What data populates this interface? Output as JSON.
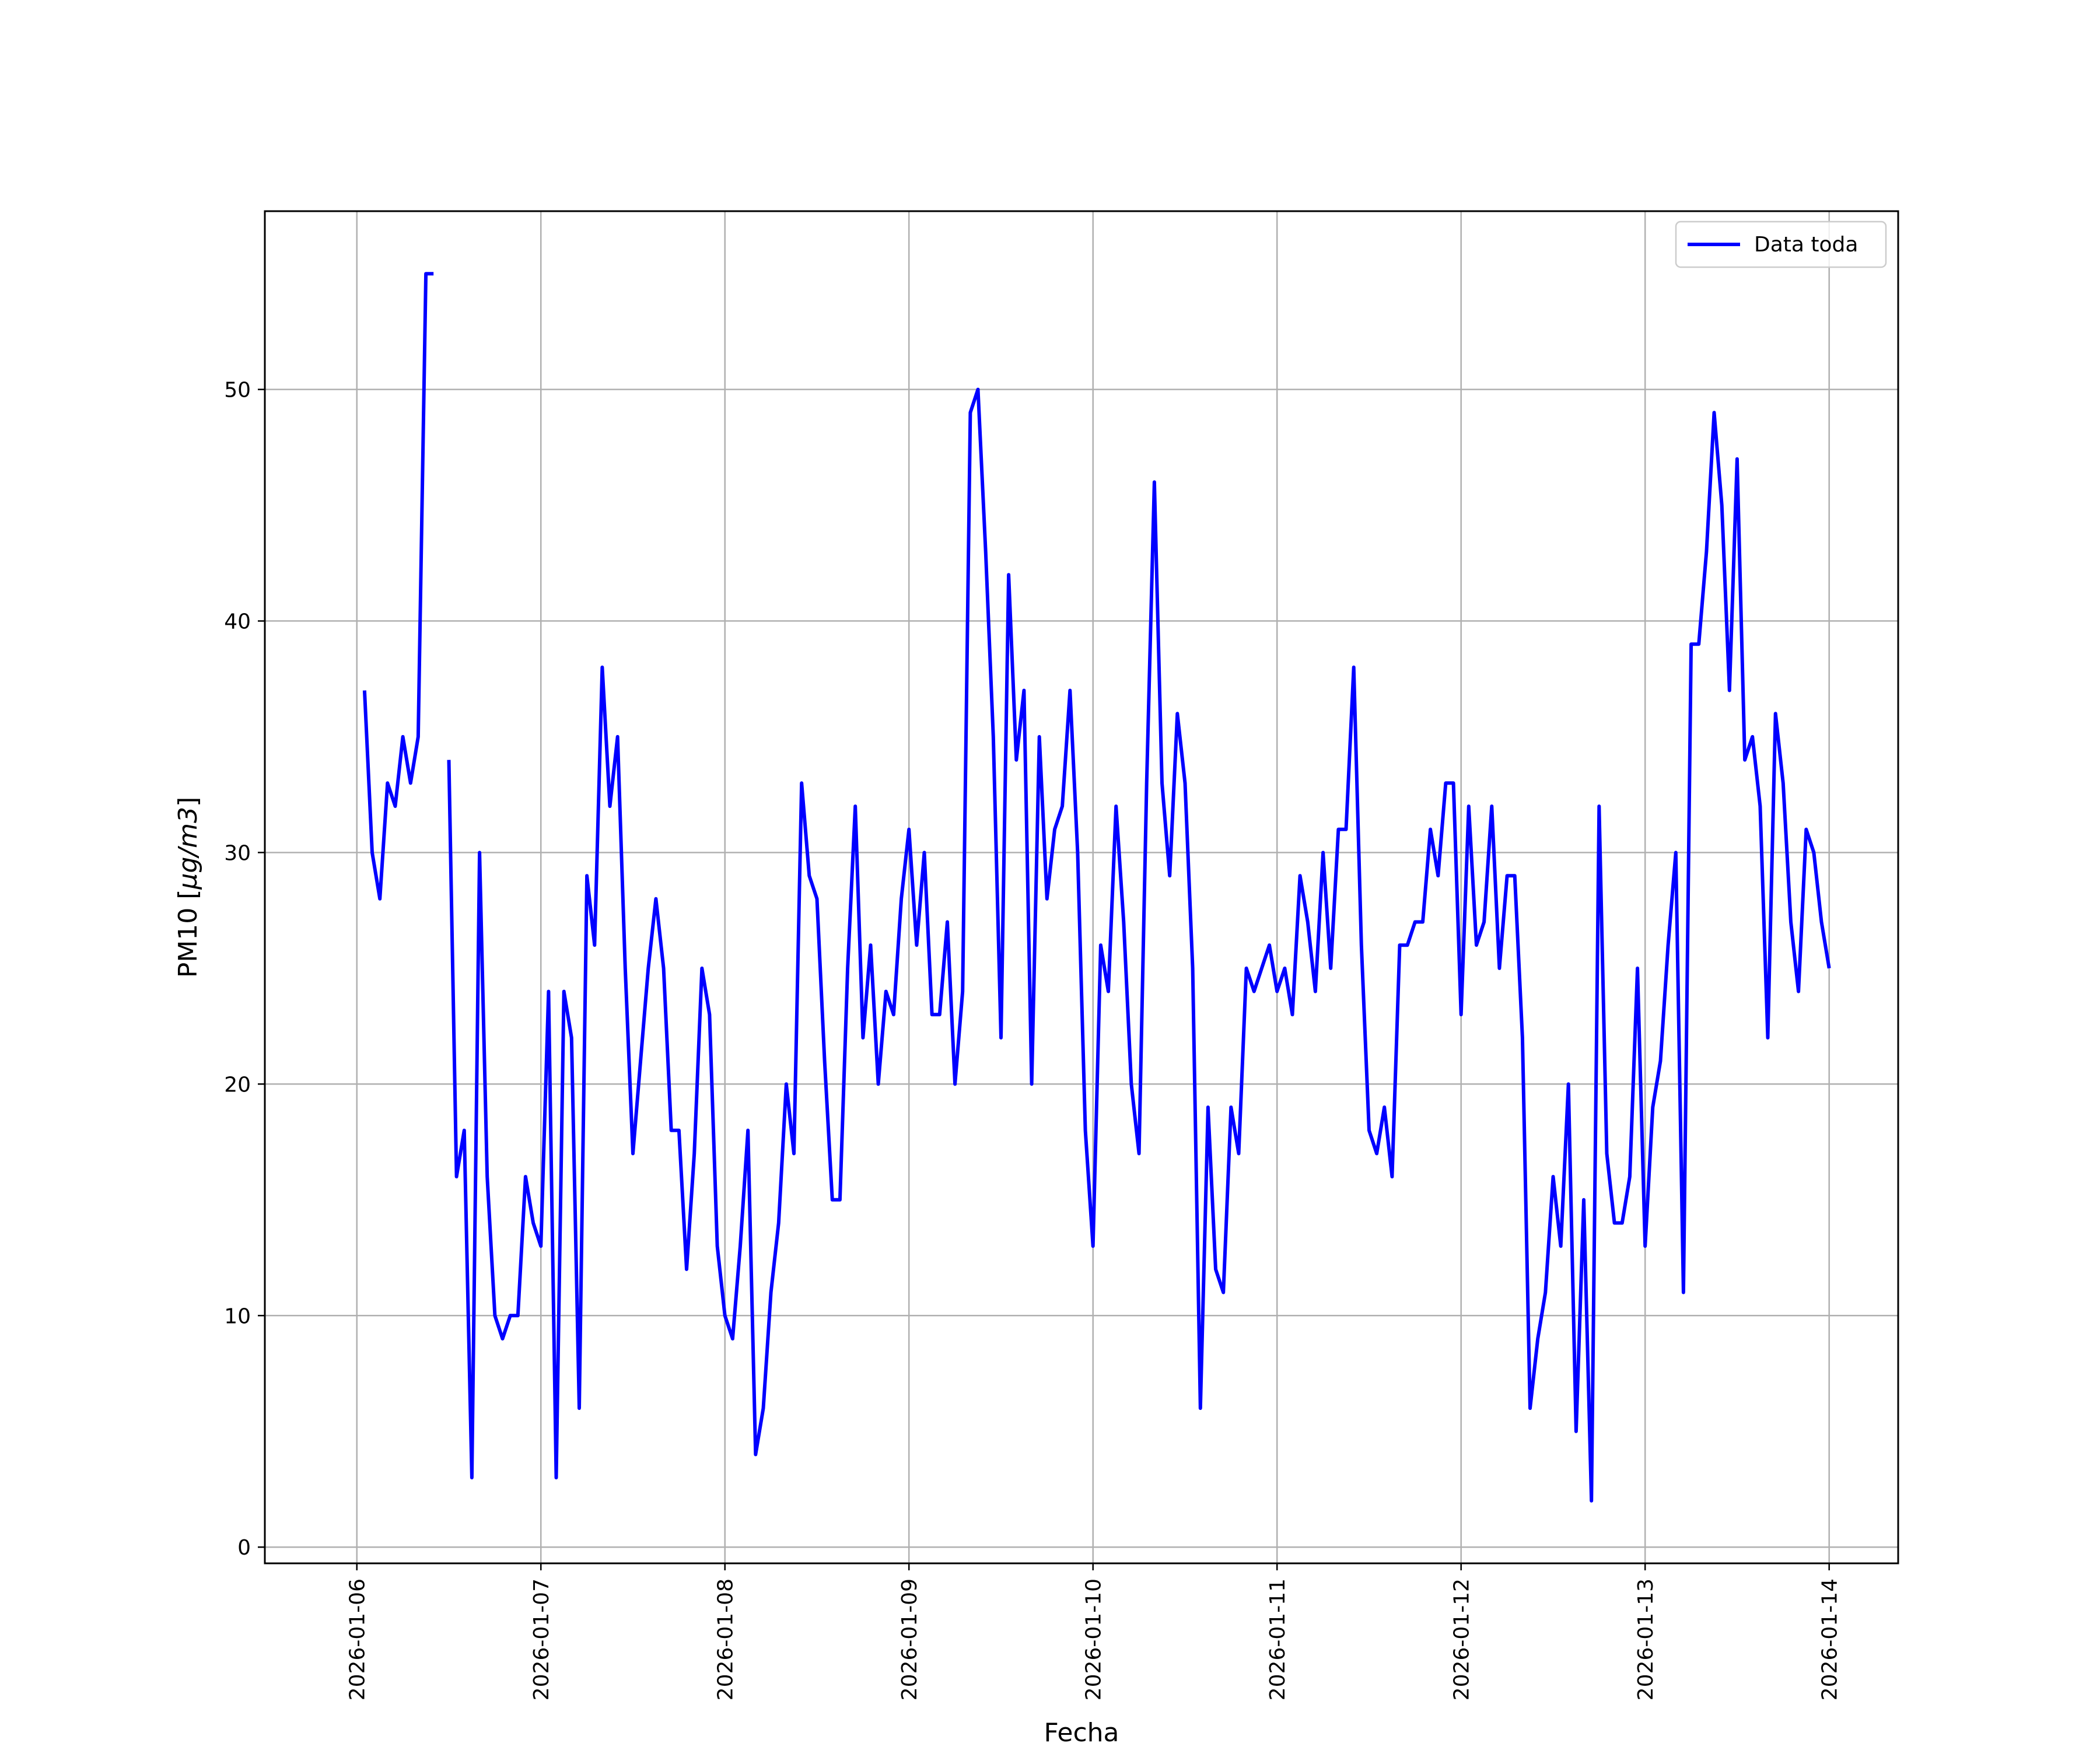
{
  "chart_data": {
    "type": "line",
    "title": "",
    "xlabel": "Fecha",
    "ylabel": "PM10 [μg/m3]",
    "ylabel_parts": {
      "prefix": "PM10 [",
      "unit": "μg/m3",
      "suffix": "]"
    },
    "xlim": [
      "2026-01-05T12:00",
      "2026-01-14T09:00"
    ],
    "ylim": [
      -0.7,
      57.7
    ],
    "x_ticks": [
      "2026-01-06",
      "2026-01-07",
      "2026-01-08",
      "2026-01-09",
      "2026-01-10",
      "2026-01-11",
      "2026-01-12",
      "2026-01-13",
      "2026-01-14"
    ],
    "y_ticks": [
      0,
      10,
      20,
      30,
      40,
      50
    ],
    "grid": true,
    "legend_position": "top-right",
    "colors": {
      "series": "#0000ff",
      "grid": "#b0b0b0",
      "axes": "#000000"
    },
    "series": [
      {
        "name": "Data toda",
        "color": "#0000ff",
        "time_step_hours": 1,
        "x": [
          "2026-01-06T01:00",
          "2026-01-06T02:00",
          "2026-01-06T03:00",
          "2026-01-06T04:00",
          "2026-01-06T05:00",
          "2026-01-06T06:00",
          "2026-01-06T07:00",
          "2026-01-06T08:00",
          "2026-01-06T09:00",
          "2026-01-06T10:00",
          "2026-01-06T11:00",
          "2026-01-06T12:00",
          "2026-01-06T13:00",
          "2026-01-06T14:00",
          "2026-01-06T15:00",
          "2026-01-06T16:00",
          "2026-01-06T17:00",
          "2026-01-06T18:00",
          "2026-01-06T19:00",
          "2026-01-06T20:00",
          "2026-01-06T21:00",
          "2026-01-06T22:00",
          "2026-01-06T23:00",
          "2026-01-07T00:00",
          "2026-01-07T01:00",
          "2026-01-07T02:00",
          "2026-01-07T03:00",
          "2026-01-07T04:00",
          "2026-01-07T05:00",
          "2026-01-07T06:00",
          "2026-01-07T07:00",
          "2026-01-07T08:00",
          "2026-01-07T09:00",
          "2026-01-07T10:00",
          "2026-01-07T11:00",
          "2026-01-07T12:00",
          "2026-01-07T13:00",
          "2026-01-07T14:00",
          "2026-01-07T15:00",
          "2026-01-07T16:00",
          "2026-01-07T17:00",
          "2026-01-07T18:00",
          "2026-01-07T19:00",
          "2026-01-07T20:00",
          "2026-01-07T21:00",
          "2026-01-07T22:00",
          "2026-01-07T23:00",
          "2026-01-08T00:00",
          "2026-01-08T01:00",
          "2026-01-08T02:00",
          "2026-01-08T03:00",
          "2026-01-08T04:00",
          "2026-01-08T05:00",
          "2026-01-08T06:00",
          "2026-01-08T07:00",
          "2026-01-08T08:00",
          "2026-01-08T09:00",
          "2026-01-08T10:00",
          "2026-01-08T11:00",
          "2026-01-08T12:00",
          "2026-01-08T13:00",
          "2026-01-08T14:00",
          "2026-01-08T15:00",
          "2026-01-08T16:00",
          "2026-01-08T17:00",
          "2026-01-08T18:00",
          "2026-01-08T19:00",
          "2026-01-08T20:00",
          "2026-01-08T21:00",
          "2026-01-08T22:00",
          "2026-01-08T23:00",
          "2026-01-09T00:00",
          "2026-01-09T01:00",
          "2026-01-09T02:00",
          "2026-01-09T03:00",
          "2026-01-09T04:00",
          "2026-01-09T05:00",
          "2026-01-09T06:00",
          "2026-01-09T07:00",
          "2026-01-09T08:00",
          "2026-01-09T09:00",
          "2026-01-09T10:00",
          "2026-01-09T11:00",
          "2026-01-09T12:00",
          "2026-01-09T13:00",
          "2026-01-09T14:00",
          "2026-01-09T15:00",
          "2026-01-09T16:00",
          "2026-01-09T17:00",
          "2026-01-09T18:00",
          "2026-01-09T19:00",
          "2026-01-09T20:00",
          "2026-01-09T21:00",
          "2026-01-09T22:00",
          "2026-01-09T23:00",
          "2026-01-10T00:00",
          "2026-01-10T01:00",
          "2026-01-10T02:00",
          "2026-01-10T03:00",
          "2026-01-10T04:00",
          "2026-01-10T05:00",
          "2026-01-10T06:00",
          "2026-01-10T07:00",
          "2026-01-10T08:00",
          "2026-01-10T09:00",
          "2026-01-10T10:00",
          "2026-01-10T11:00",
          "2026-01-10T12:00",
          "2026-01-10T13:00",
          "2026-01-10T14:00",
          "2026-01-10T15:00",
          "2026-01-10T16:00",
          "2026-01-10T17:00",
          "2026-01-10T18:00",
          "2026-01-10T19:00",
          "2026-01-10T20:00",
          "2026-01-10T21:00",
          "2026-01-10T22:00",
          "2026-01-10T23:00",
          "2026-01-11T00:00",
          "2026-01-11T01:00",
          "2026-01-11T02:00",
          "2026-01-11T03:00",
          "2026-01-11T04:00",
          "2026-01-11T05:00",
          "2026-01-11T06:00",
          "2026-01-11T07:00",
          "2026-01-11T08:00",
          "2026-01-11T09:00",
          "2026-01-11T10:00",
          "2026-01-11T11:00",
          "2026-01-11T12:00",
          "2026-01-11T13:00",
          "2026-01-11T14:00",
          "2026-01-11T15:00",
          "2026-01-11T16:00",
          "2026-01-11T17:00",
          "2026-01-11T18:00",
          "2026-01-11T19:00",
          "2026-01-11T20:00",
          "2026-01-11T21:00",
          "2026-01-11T22:00",
          "2026-01-11T23:00",
          "2026-01-12T00:00",
          "2026-01-12T01:00",
          "2026-01-12T02:00",
          "2026-01-12T03:00",
          "2026-01-12T04:00",
          "2026-01-12T05:00",
          "2026-01-12T06:00",
          "2026-01-12T07:00",
          "2026-01-12T08:00",
          "2026-01-12T09:00",
          "2026-01-12T10:00",
          "2026-01-12T11:00",
          "2026-01-12T12:00",
          "2026-01-12T13:00",
          "2026-01-12T14:00",
          "2026-01-12T15:00",
          "2026-01-12T16:00",
          "2026-01-12T17:00",
          "2026-01-12T18:00",
          "2026-01-12T19:00",
          "2026-01-12T20:00",
          "2026-01-12T21:00",
          "2026-01-12T22:00",
          "2026-01-12T23:00",
          "2026-01-13T00:00",
          "2026-01-13T01:00",
          "2026-01-13T02:00",
          "2026-01-13T03:00",
          "2026-01-13T04:00",
          "2026-01-13T05:00",
          "2026-01-13T06:00",
          "2026-01-13T07:00",
          "2026-01-13T08:00",
          "2026-01-13T09:00",
          "2026-01-13T10:00",
          "2026-01-13T11:00",
          "2026-01-13T12:00",
          "2026-01-13T13:00",
          "2026-01-13T14:00",
          "2026-01-13T15:00",
          "2026-01-13T16:00",
          "2026-01-13T17:00",
          "2026-01-13T18:00",
          "2026-01-13T19:00",
          "2026-01-13T20:00",
          "2026-01-13T21:00",
          "2026-01-13T22:00",
          "2026-01-13T23:00",
          "2026-01-14T00:00"
        ],
        "y": [
          37,
          30,
          28,
          33,
          32,
          35,
          33,
          35,
          55,
          55,
          null,
          34,
          16,
          18,
          3,
          30,
          16,
          10,
          9,
          10,
          10,
          16,
          14,
          13,
          24,
          3,
          24,
          22,
          6,
          29,
          26,
          38,
          32,
          35,
          25,
          17,
          21,
          25,
          28,
          25,
          18,
          18,
          12,
          17,
          25,
          23,
          13,
          10,
          9,
          13,
          18,
          4,
          6,
          11,
          14,
          20,
          17,
          33,
          29,
          28,
          21,
          15,
          15,
          25,
          32,
          22,
          26,
          20,
          24,
          23,
          28,
          31,
          26,
          30,
          23,
          23,
          27,
          20,
          24,
          49,
          50,
          43,
          35,
          22,
          42,
          34,
          37,
          20,
          35,
          28,
          31,
          32,
          37,
          30,
          18,
          13,
          26,
          24,
          32,
          27,
          20,
          17,
          33,
          46,
          33,
          29,
          36,
          33,
          25,
          6,
          19,
          12,
          11,
          19,
          17,
          25,
          24,
          25,
          26,
          24,
          25,
          23,
          29,
          27,
          24,
          30,
          25,
          31,
          31,
          38,
          26,
          18,
          17,
          19,
          16,
          26,
          26,
          27,
          27,
          31,
          29,
          33,
          33,
          23,
          32,
          26,
          27,
          32,
          25,
          29,
          29,
          22,
          6,
          9,
          11,
          16,
          13,
          20,
          5,
          15,
          2,
          32,
          17,
          14,
          14,
          16,
          25,
          13,
          19,
          21,
          26,
          30,
          11,
          39,
          39,
          43,
          49,
          45,
          37,
          47,
          34,
          35,
          32,
          22,
          36,
          33,
          27,
          24,
          31,
          30,
          27,
          25
        ]
      }
    ]
  }
}
